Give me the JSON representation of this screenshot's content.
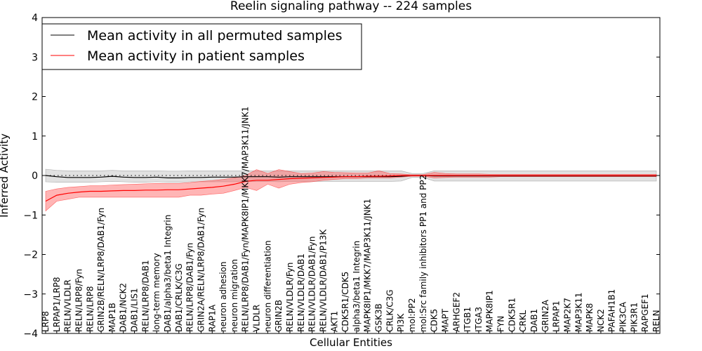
{
  "chart_data": {
    "type": "line",
    "title": "Reelin signaling pathway -- 224 samples",
    "xlabel": "Cellular Entities",
    "ylabel": "Inferred Activity",
    "ylim": [
      -4,
      4
    ],
    "yticks": [
      -4,
      -3,
      -2,
      -1,
      0,
      1,
      2,
      3,
      4
    ],
    "ytick_labels": [
      "−4",
      "−3",
      "−2",
      "−1",
      "0",
      "1",
      "2",
      "3",
      "4"
    ],
    "legend_position": "top-left",
    "categories": [
      "LRP8",
      "LRPAP1/LRP8",
      "RELN/VLDLR",
      "RELN/LRP8/Fyn",
      "RELN/LRP8",
      "GRIN2B/RELN/LRP8/DAB1/Fyn",
      "MAP1B",
      "DAB1/NCK2",
      "DAB1/LIS1",
      "RELN/LRP8/DAB1",
      "long-term memory",
      "DAB1/alpha3/beta1 Integrin",
      "DAB1/CRLK/C3G",
      "RELN/LRP8/DAB1/Fyn",
      "GRIN2A/RELN/LRP8/DAB1/Fyn",
      "RAP1A",
      "neuron adhesion",
      "neuron migration",
      "RELN/LRP8/DAB1/Fyn/MAPK8IP1/MKK7/MAP3K11/JNK1",
      "VLDLR",
      "neuron differentiation",
      "GRIN2B",
      "RELN/VLDLR/Fyn",
      "RELN/VLDLR/DAB1",
      "RELN/VLDLR/DAB1/Fyn",
      "RELN/VLDLR/DAB1/P13K",
      "AKT1",
      "CDK5R1/CDK5",
      "alpha3/beta1 Integrin",
      "MAPK8IP1/MKK7/MAP3K11/JNK1",
      "GSK3B",
      "CRLK/C3G",
      "PI3K",
      "mol:PP2",
      "mol:Src family inhibitors PP1 and PP2",
      "CDK5",
      "MAPT",
      "ARHGEF2",
      "ITGB1",
      "ITGA3",
      "MAPK8IP1",
      "FYN",
      "CDK5R1",
      "CRKL",
      "DAB1",
      "GRIN2A",
      "LRPAP1",
      "MAP2K7",
      "MAP3K11",
      "MAPK8",
      "NCK2",
      "PAFAH1B1",
      "PIK3CA",
      "PIK3R1",
      "RAPGEF1",
      "RELN"
    ],
    "series": [
      {
        "name": "Mean activity in all permuted samples",
        "color": "#000000",
        "values": [
          0.0,
          -0.03,
          -0.05,
          -0.05,
          -0.05,
          -0.04,
          -0.02,
          -0.04,
          -0.05,
          -0.05,
          -0.04,
          -0.06,
          -0.06,
          -0.05,
          -0.05,
          -0.04,
          -0.04,
          -0.04,
          -0.03,
          -0.03,
          -0.03,
          -0.04,
          -0.03,
          -0.03,
          -0.03,
          -0.03,
          -0.03,
          -0.03,
          -0.03,
          -0.03,
          -0.03,
          -0.03,
          -0.02,
          0.0,
          0.0,
          -0.01,
          -0.01,
          -0.01,
          -0.01,
          -0.01,
          -0.01,
          -0.01,
          -0.01,
          -0.01,
          -0.01,
          -0.01,
          -0.01,
          -0.01,
          -0.01,
          -0.01,
          -0.01,
          -0.01,
          -0.01,
          -0.01,
          -0.01,
          -0.01
        ],
        "lower": [
          -0.16,
          -0.17,
          -0.17,
          -0.17,
          -0.17,
          -0.16,
          -0.15,
          -0.16,
          -0.17,
          -0.17,
          -0.16,
          -0.17,
          -0.17,
          -0.16,
          -0.16,
          -0.16,
          -0.16,
          -0.16,
          -0.15,
          -0.15,
          -0.15,
          -0.16,
          -0.15,
          -0.15,
          -0.15,
          -0.15,
          -0.15,
          -0.15,
          -0.15,
          -0.15,
          -0.15,
          -0.15,
          -0.14,
          -0.05,
          -0.05,
          -0.14,
          -0.14,
          -0.14,
          -0.14,
          -0.14,
          -0.14,
          -0.14,
          -0.14,
          -0.14,
          -0.14,
          -0.14,
          -0.14,
          -0.14,
          -0.14,
          -0.14,
          -0.14,
          -0.14,
          -0.14,
          -0.14,
          -0.14,
          -0.14
        ],
        "upper": [
          0.16,
          0.13,
          0.12,
          0.12,
          0.12,
          0.12,
          0.13,
          0.12,
          0.12,
          0.12,
          0.12,
          0.11,
          0.11,
          0.12,
          0.12,
          0.12,
          0.12,
          0.12,
          0.12,
          0.12,
          0.12,
          0.12,
          0.12,
          0.12,
          0.12,
          0.12,
          0.12,
          0.12,
          0.12,
          0.12,
          0.12,
          0.12,
          0.12,
          0.05,
          0.05,
          0.12,
          0.12,
          0.12,
          0.12,
          0.12,
          0.12,
          0.12,
          0.12,
          0.12,
          0.12,
          0.12,
          0.12,
          0.12,
          0.12,
          0.12,
          0.12,
          0.12,
          0.12,
          0.12,
          0.12,
          0.12
        ]
      },
      {
        "name": "Mean activity in patient samples",
        "color": "#ff0000",
        "values": [
          -0.65,
          -0.5,
          -0.45,
          -0.42,
          -0.4,
          -0.4,
          -0.39,
          -0.38,
          -0.38,
          -0.37,
          -0.37,
          -0.36,
          -0.36,
          -0.34,
          -0.32,
          -0.3,
          -0.27,
          -0.22,
          -0.15,
          -0.12,
          -0.12,
          -0.1,
          -0.08,
          -0.07,
          -0.06,
          -0.05,
          -0.04,
          -0.03,
          -0.03,
          -0.02,
          -0.02,
          -0.01,
          0.0,
          0.0,
          0.0,
          0.0,
          0.0,
          0.0,
          0.0,
          0.0,
          0.0,
          0.0,
          0.0,
          0.0,
          0.0,
          0.0,
          0.0,
          0.0,
          0.0,
          0.0,
          0.0,
          0.0,
          0.0,
          0.0,
          0.0,
          0.0
        ],
        "lower": [
          -0.9,
          -0.65,
          -0.6,
          -0.55,
          -0.55,
          -0.55,
          -0.55,
          -0.55,
          -0.55,
          -0.55,
          -0.55,
          -0.55,
          -0.55,
          -0.5,
          -0.5,
          -0.47,
          -0.45,
          -0.38,
          -0.3,
          -0.38,
          -0.22,
          -0.32,
          -0.22,
          -0.18,
          -0.16,
          -0.12,
          -0.1,
          -0.08,
          -0.08,
          -0.06,
          -0.06,
          -0.06,
          -0.04,
          -0.02,
          -0.02,
          -0.06,
          -0.05,
          -0.04,
          -0.04,
          -0.04,
          -0.04,
          -0.03,
          -0.03,
          -0.03,
          -0.03,
          -0.03,
          -0.03,
          -0.03,
          -0.03,
          -0.03,
          -0.03,
          -0.03,
          -0.03,
          -0.03,
          -0.03,
          -0.03
        ],
        "upper": [
          -0.4,
          -0.34,
          -0.3,
          -0.28,
          -0.26,
          -0.26,
          -0.24,
          -0.23,
          -0.22,
          -0.21,
          -0.2,
          -0.2,
          -0.2,
          -0.18,
          -0.15,
          -0.13,
          -0.1,
          -0.06,
          0.0,
          0.15,
          0.05,
          0.15,
          0.1,
          0.05,
          0.06,
          0.1,
          0.08,
          0.07,
          0.06,
          0.06,
          0.12,
          0.05,
          0.04,
          0.02,
          0.02,
          0.08,
          0.05,
          0.04,
          0.04,
          0.04,
          0.03,
          0.03,
          0.03,
          0.03,
          0.03,
          0.03,
          0.03,
          0.03,
          0.03,
          0.03,
          0.03,
          0.03,
          0.03,
          0.03,
          0.03,
          0.03
        ]
      }
    ],
    "reference_line": 0
  }
}
